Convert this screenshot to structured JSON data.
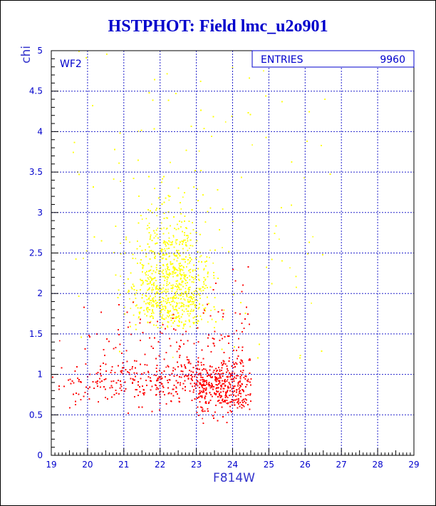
{
  "title": "HSTPHOT: Field lmc_u2o901",
  "colors": {
    "title": "#0000cc",
    "axes": "#0000cc",
    "grid": "#2222cc",
    "series_good": "#ffff00",
    "series_bad": "#ff0000"
  },
  "chart_data": {
    "type": "scatter",
    "title": "HSTPHOT: Field lmc_u2o901",
    "xlabel": "F814W",
    "ylabel": "chi",
    "xlim": [
      19,
      29
    ],
    "ylim": [
      0,
      5
    ],
    "xticks": [
      19,
      20,
      21,
      22,
      23,
      24,
      25,
      26,
      27,
      28,
      29
    ],
    "yticks": [
      0,
      0.5,
      1,
      1.5,
      2,
      2.5,
      3,
      3.5,
      4,
      4.5,
      5
    ],
    "grid": true,
    "panel_label": "WF2",
    "stats_box": {
      "label": "ENTRIES",
      "value": "9960"
    },
    "series": [
      {
        "color": "#ffff00",
        "distribution": {
          "x_range": [
            19.4,
            26.8
          ],
          "x_peak": [
            21.2,
            23.4
          ],
          "y_range": [
            1.2,
            5.0
          ],
          "y_peak": [
            1.4,
            3.0
          ],
          "approx_count": 4200
        }
      },
      {
        "color": "#ff0000",
        "distribution": {
          "x_range": [
            19.0,
            24.6
          ],
          "y_range": [
            0.2,
            2.3
          ],
          "y_peak": [
            0.7,
            1.3
          ],
          "approx_count": 5760
        }
      }
    ]
  }
}
